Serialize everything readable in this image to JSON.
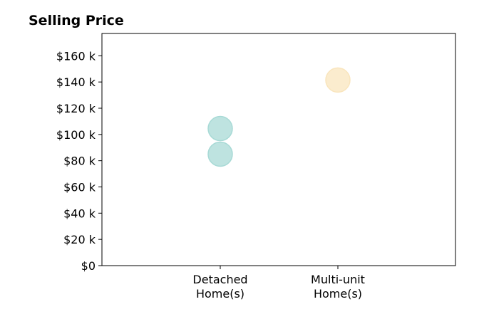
{
  "chart_data": {
    "type": "scatter",
    "title": "Selling Price",
    "xlabel": "",
    "ylabel": "",
    "categories": [
      [
        "Detached",
        "Home(s)"
      ],
      [
        "Multi-unit",
        "Home(s)"
      ]
    ],
    "y_ticks": [
      0,
      20000,
      40000,
      60000,
      80000,
      100000,
      120000,
      140000,
      160000
    ],
    "y_tick_labels": [
      "$0",
      "$20 k",
      "$40 k",
      "$60 k",
      "$80 k",
      "$100 k",
      "$120 k",
      "$140 k",
      "$160 k"
    ],
    "ylim": [
      0,
      177000
    ],
    "grid": false,
    "points": [
      {
        "category_index": 0,
        "y": 85000,
        "color": "#a8dad6"
      },
      {
        "category_index": 0,
        "y": 104500,
        "color": "#a8dad6"
      },
      {
        "category_index": 1,
        "y": 141500,
        "color": "#f9e5bd"
      }
    ]
  }
}
